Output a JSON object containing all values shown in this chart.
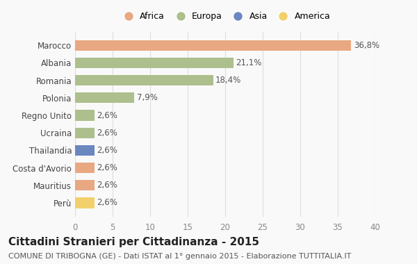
{
  "countries": [
    "Marocco",
    "Albania",
    "Romania",
    "Polonia",
    "Regno Unito",
    "Ucraina",
    "Thailandia",
    "Costa d'Avorio",
    "Mauritius",
    "Perù"
  ],
  "values": [
    36.8,
    21.1,
    18.4,
    7.9,
    2.6,
    2.6,
    2.6,
    2.6,
    2.6,
    2.6
  ],
  "labels": [
    "36,8%",
    "21,1%",
    "18,4%",
    "7,9%",
    "2,6%",
    "2,6%",
    "2,6%",
    "2,6%",
    "2,6%",
    "2,6%"
  ],
  "colors": [
    "#E8A882",
    "#ADBF8C",
    "#ADBF8C",
    "#ADBF8C",
    "#ADBF8C",
    "#ADBF8C",
    "#6A87C0",
    "#E8A882",
    "#E8A882",
    "#F2D06B"
  ],
  "continent_labels": [
    "Africa",
    "Europa",
    "Asia",
    "America"
  ],
  "continent_colors": [
    "#E8A882",
    "#ADBF8C",
    "#6A87C0",
    "#F2D06B"
  ],
  "title": "Cittadini Stranieri per Cittadinanza - 2015",
  "subtitle": "COMUNE DI TRIBOGNA (GE) - Dati ISTAT al 1° gennaio 2015 - Elaborazione TUTTITALIA.IT",
  "xlim": [
    0,
    40
  ],
  "xticks": [
    0,
    5,
    10,
    15,
    20,
    25,
    30,
    35,
    40
  ],
  "background_color": "#f9f9f9",
  "grid_color": "#dddddd",
  "bar_height": 0.6,
  "label_fontsize": 8.5,
  "title_fontsize": 11,
  "subtitle_fontsize": 8,
  "tick_fontsize": 8.5,
  "legend_fontsize": 9
}
